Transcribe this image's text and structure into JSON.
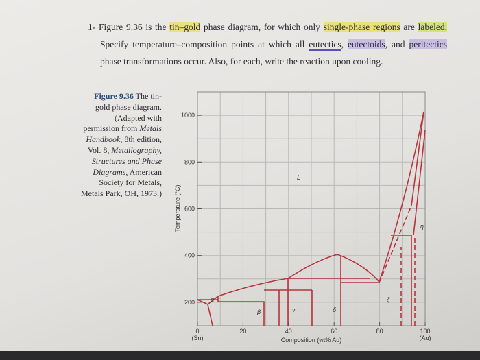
{
  "question": {
    "number": "1-",
    "segments": [
      "Figure 9.36 is the ",
      "tin–gold",
      " phase diagram, for which only ",
      "single-phase regions",
      " are ",
      "labeled.",
      " Specify temperature–composition points at which all ",
      "eutectics",
      ", ",
      "eutectoids",
      ", and ",
      "peritectics",
      " phase transformations occur. ",
      "Also, for each, write the reaction upon cooling."
    ]
  },
  "caption": {
    "label": "Figure 9.36",
    "segments": [
      " The tin-gold phase diagram. (Adapted with permission from ",
      "Metals Handbook,",
      " 8th edition, Vol. 8, ",
      "Metallography, Structures and Phase Diagrams,",
      " American Society for Metals, Metals Park, OH, 1973.)"
    ]
  },
  "figure": {
    "y_axis_label": "Temperature (°C)",
    "x_axis_label": "Composition (wt% Au)",
    "y_ticks": [
      "200",
      "400",
      "600",
      "800",
      "1000"
    ],
    "x_ticks": [
      "0",
      "20",
      "40",
      "60",
      "80",
      "100"
    ],
    "x_tick_notes": [
      "(Sn)",
      "(Au)"
    ],
    "regions": [
      "L",
      "α",
      "β",
      "γ",
      "δ",
      "ζ",
      "η"
    ]
  }
}
